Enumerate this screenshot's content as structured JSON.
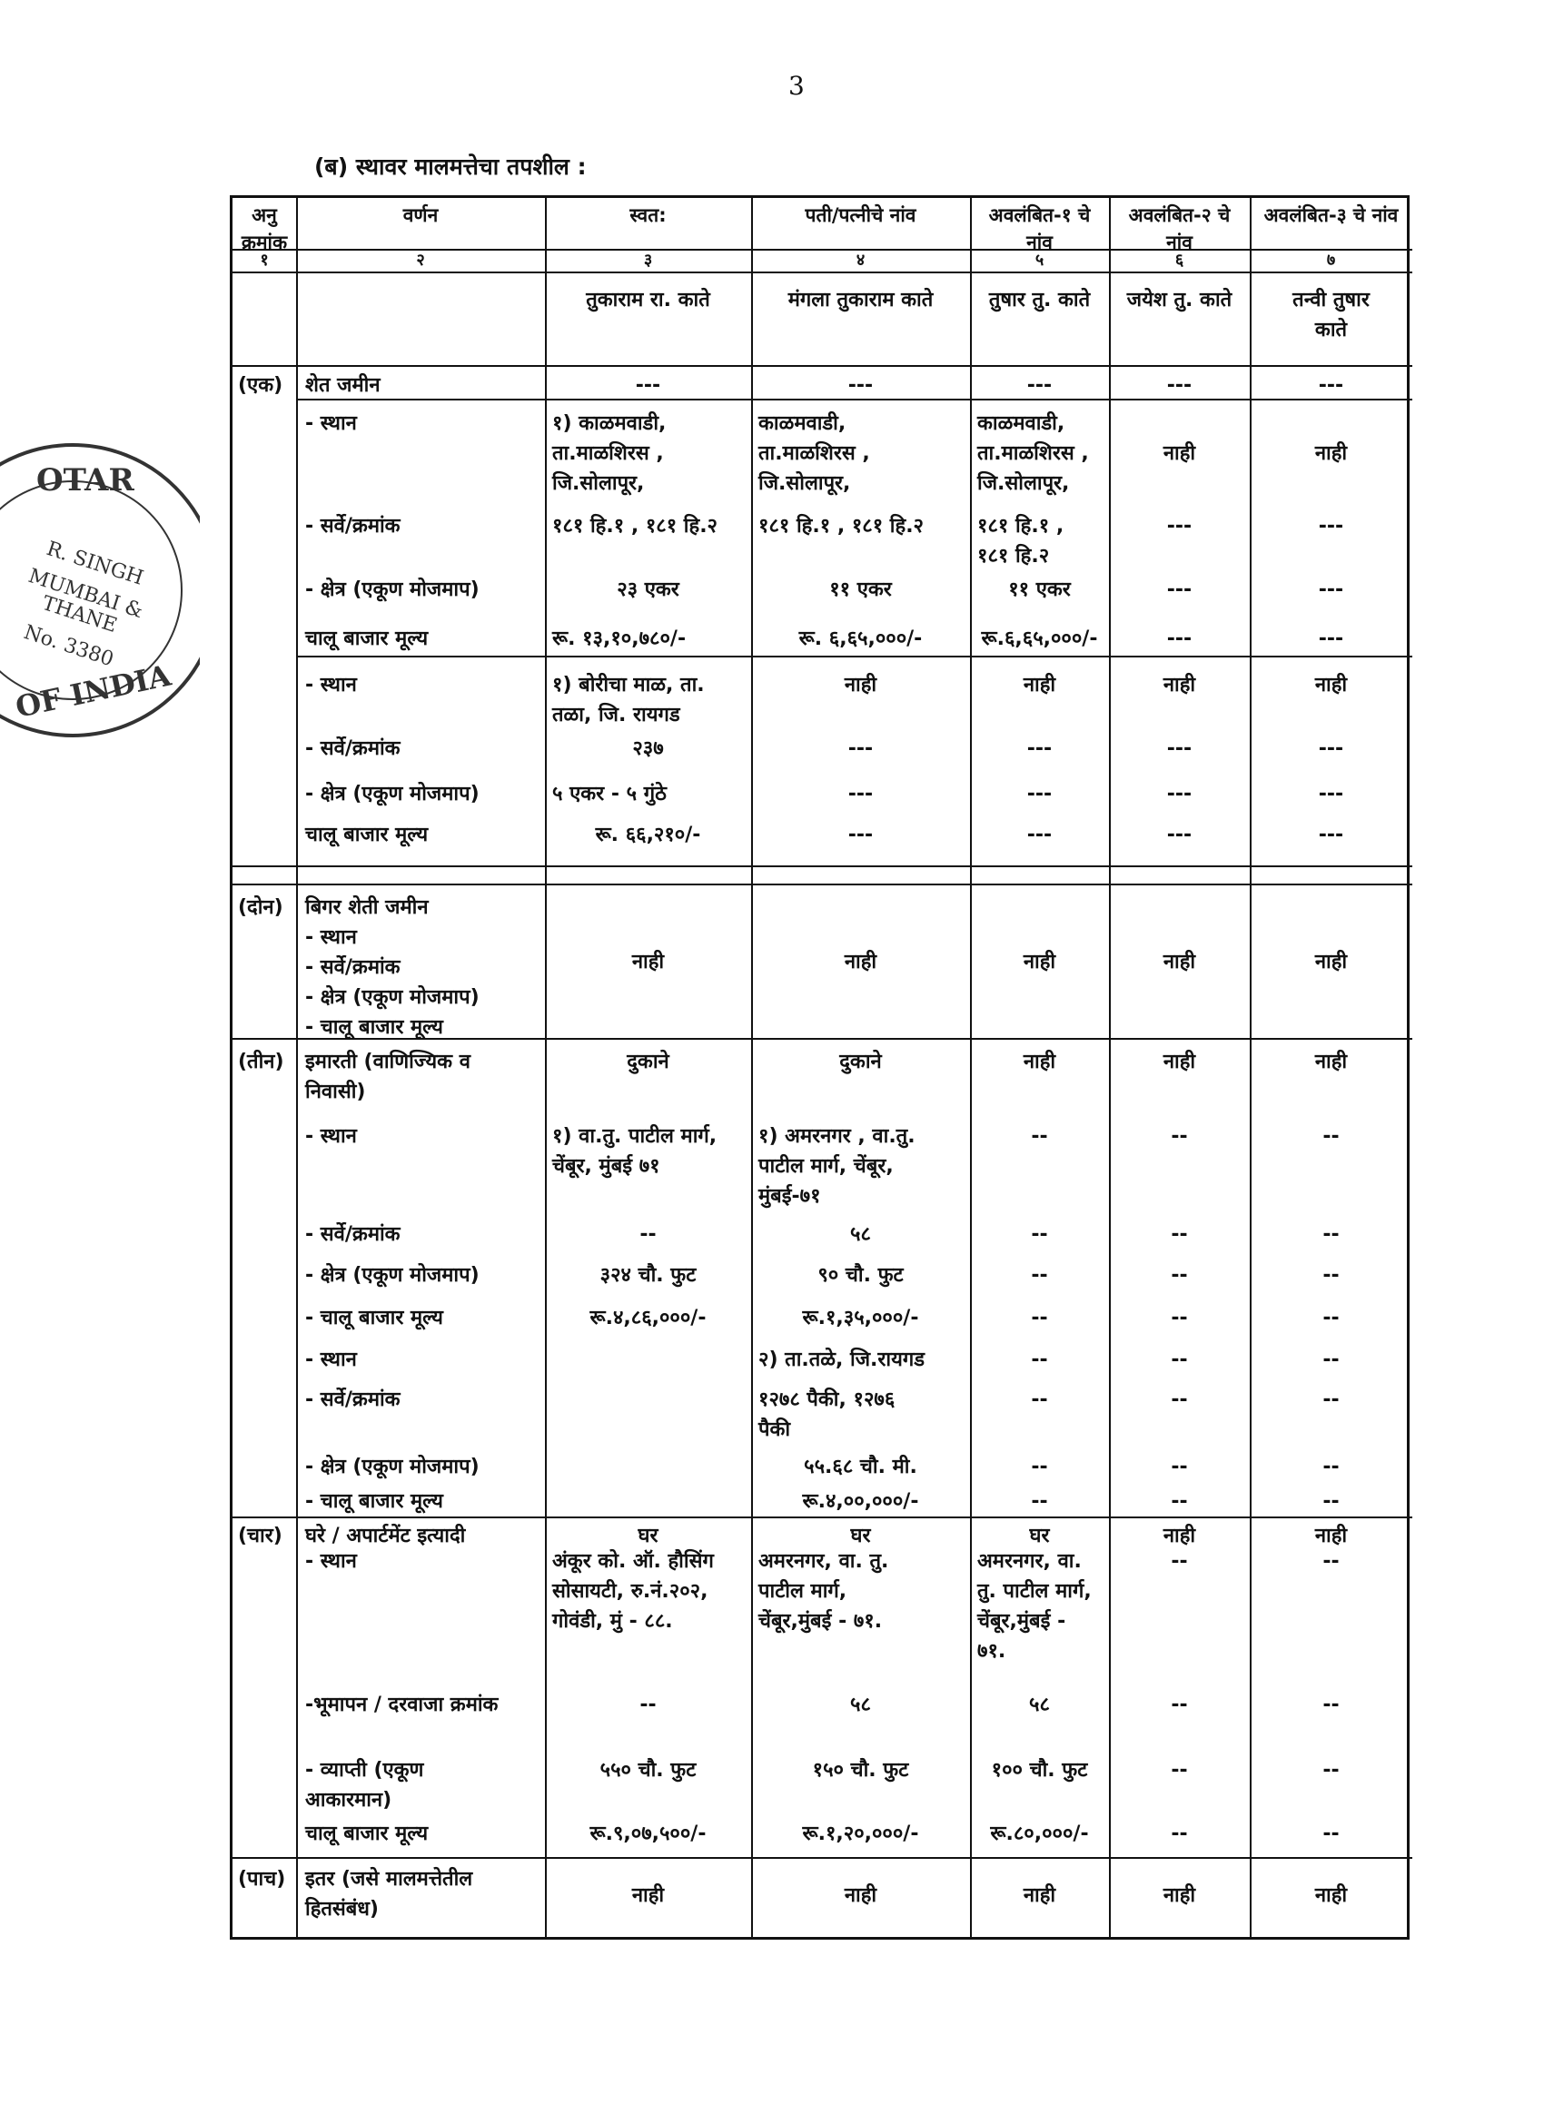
{
  "page_number": "3",
  "title": "(ब) स्थावर मालमत्तेचा तपशील :",
  "stamp": {
    "lines": [
      "OTAR",
      "R. SINGH",
      "MUMBAI &",
      "THANE",
      "No. 3380",
      "OF INDIA"
    ]
  },
  "headers": [
    "अनु क्रमांक",
    "वर्णन",
    "स्वत:",
    "पती/पत्नीचे नांव",
    "अवलंबित-१ चे नांव",
    "अवलंबित-२ चे नांव",
    "अवलंबित-३ चे नांव"
  ],
  "column_numbers": [
    "१",
    "२",
    "३",
    "४",
    "५",
    "६",
    "७"
  ],
  "names": [
    "",
    "",
    "तुकाराम रा. काते",
    "मंगला तुकाराम काते",
    "तुषार तु. काते",
    "जयेश तु. काते",
    "तन्वी तुषार\nकाते"
  ],
  "sections": [
    {
      "num": "(एक)",
      "rows": [
        {
          "label": "शेत जमीन",
          "values": [
            "---",
            "---",
            "---",
            "---",
            "---"
          ]
        },
        {
          "label": "- स्थान",
          "values": [
            "१) काळमवाडी,\nता.माळशिरस ,\nजि.सोलापूर,",
            "काळमवाडी,\nता.माळशिरस ,\nजि.सोलापूर,",
            "काळमवाडी,\nता.माळशिरस ,\nजि.सोलापूर,",
            "",
            ""
          ]
        },
        {
          "label": "",
          "values": [
            "",
            "",
            "",
            "नाही",
            "नाही"
          ]
        },
        {
          "label": "- सर्वे/क्रमांक",
          "values": [
            "१८१ हि.१ , १८१ हि.२",
            "१८१ हि.१ , १८१ हि.२",
            "१८१ हि.१ ,\n१८१ हि.२",
            "---",
            "---"
          ]
        },
        {
          "label": "- क्षेत्र (एकूण मोजमाप)",
          "values": [
            "२३ एकर",
            "११ एकर",
            "११ एकर",
            "---",
            "---"
          ]
        },
        {
          "label": "चालू बाजार मूल्य",
          "values": [
            "रू. १३,१०,७८०/-",
            "रू. ६,६५,०००/-",
            "रू.६,६५,०००/-",
            "---",
            "---"
          ]
        },
        {
          "label": "- स्थान",
          "values": [
            "१) बोरीचा माळ, ता.\nतळा, जि. रायगड",
            "नाही",
            "नाही",
            "नाही",
            "नाही"
          ]
        },
        {
          "label": "- सर्वे/क्रमांक",
          "values": [
            "२३७",
            "---",
            "---",
            "---",
            "---"
          ]
        },
        {
          "label": "- क्षेत्र (एकूण मोजमाप)",
          "values": [
            "५ एकर - ५ गुंठे",
            "---",
            "---",
            "---",
            "---"
          ]
        },
        {
          "label": "चालू बाजार मूल्य",
          "values": [
            "रू. ६६,२१०/-",
            "---",
            "---",
            "---",
            "---"
          ]
        }
      ]
    },
    {
      "num": "(दोन)",
      "rows": [
        {
          "label": "बिगर शेती जमीन\n- स्थान\n- सर्वे/क्रमांक\n- क्षेत्र (एकूण मोजमाप)\n- चालू बाजार मूल्य",
          "values": [
            "",
            "",
            "",
            "",
            ""
          ]
        },
        {
          "label": "",
          "values": [
            "नाही",
            "नाही",
            "नाही",
            "नाही",
            "नाही"
          ]
        }
      ]
    },
    {
      "num": "(तीन)",
      "rows": [
        {
          "label": "इमारती (वाणिज्यिक व\nनिवासी)",
          "values": [
            "दुकाने",
            "दुकाने",
            "नाही",
            "नाही",
            "नाही"
          ]
        },
        {
          "label": "- स्थान",
          "values": [
            "१) वा.तु. पाटील मार्ग,\nचेंबूर, मुंबई ७१",
            "१) अमरनगर , वा.तु.\nपाटील मार्ग, चेंबूर,\nमुंबई-७१",
            "--",
            "--",
            "--"
          ]
        },
        {
          "label": "- सर्वे/क्रमांक",
          "values": [
            "--",
            "५८",
            "--",
            "--",
            "--"
          ]
        },
        {
          "label": "- क्षेत्र (एकूण मोजमाप)",
          "values": [
            "३२४ चौ. फुट",
            "९० चौ. फुट",
            "--",
            "--",
            "--"
          ]
        },
        {
          "label": "- चालू बाजार मूल्य",
          "values": [
            "रू.४,८६,०००/-",
            "रू.१,३५,०००/-",
            "--",
            "--",
            "--"
          ]
        },
        {
          "label": "- स्थान",
          "values": [
            "",
            "२) ता.तळे, जि.रायगड",
            "--",
            "--",
            "--"
          ]
        },
        {
          "label": "- सर्वे/क्रमांक",
          "values": [
            "",
            "१२७८ पैकी, १२७६\nपैकी",
            "--",
            "--",
            "--"
          ]
        },
        {
          "label": "- क्षेत्र (एकूण मोजमाप)",
          "values": [
            "",
            "५५.६८ चौ. मी.",
            "--",
            "--",
            "--"
          ]
        },
        {
          "label": "- चालू बाजार मूल्य",
          "values": [
            "",
            "रू.४,००,०००/-",
            "--",
            "--",
            "--"
          ]
        }
      ]
    },
    {
      "num": "(चार)",
      "rows": [
        {
          "label": "घरे / अपार्टमेंट इत्यादी",
          "values": [
            "घर",
            "घर",
            "घर",
            "नाही",
            "नाही"
          ]
        },
        {
          "label": "- स्थान",
          "values": [
            "अंकूर को. ऑ. हौसिंग\nसोसायटी, रु.नं.२०२,\nगोवंडी, मुं - ८८.",
            "अमरनगर, वा. तु.\nपाटील मार्ग,\nचेंबूर,मुंबई - ७१.",
            "अमरनगर, वा.\nतु. पाटील मार्ग,\nचेंबूर,मुंबई -\n७१.",
            "--",
            "--"
          ]
        },
        {
          "label": "-भूमापन / दरवाजा क्रमांक",
          "values": [
            "--",
            "५८",
            "५८",
            "--",
            "--"
          ]
        },
        {
          "label": "- व्याप्ती (एकूण\nआकारमान)",
          "values": [
            "५५० चौ. फुट",
            "१५० चौ. फुट",
            "१०० चौ. फुट",
            "--",
            "--"
          ]
        },
        {
          "label": "चालू बाजार मूल्य",
          "values": [
            "रू.९,०७,५००/-",
            "रू.१,२०,०००/-",
            "रू.८०,०००/-",
            "--",
            "--"
          ]
        }
      ]
    },
    {
      "num": "(पाच)",
      "rows": [
        {
          "label": "इतर (जसे मालमत्तेतील\nहितसंबंध)",
          "values": [
            "",
            "",
            "",
            "",
            ""
          ]
        },
        {
          "label": "",
          "values": [
            "नाही",
            "नाही",
            "नाही",
            "नाही",
            "नाही"
          ]
        }
      ]
    }
  ]
}
